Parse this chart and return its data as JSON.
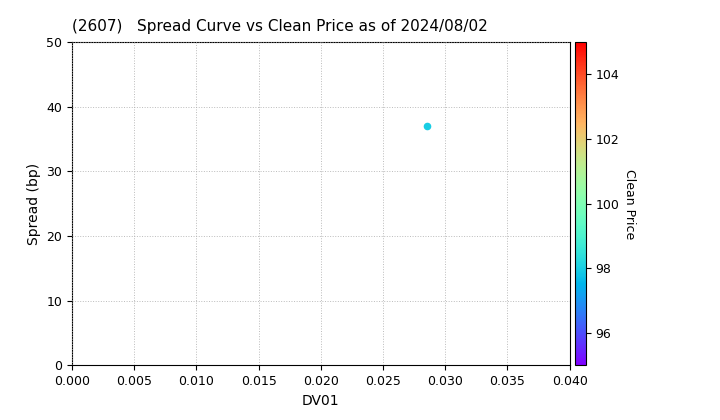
{
  "title": "(2607)   Spread Curve vs Clean Price as of 2024/08/02",
  "xlabel": "DV01",
  "ylabel": "Spread (bp)",
  "colorbar_label": "Clean Price",
  "xlim": [
    0.0,
    0.04
  ],
  "ylim": [
    0,
    50
  ],
  "xticks": [
    0.0,
    0.005,
    0.01,
    0.015,
    0.02,
    0.025,
    0.03,
    0.035,
    0.04
  ],
  "yticks": [
    0,
    10,
    20,
    30,
    40,
    50
  ],
  "colorbar_ticks": [
    96,
    98,
    100,
    102,
    104
  ],
  "colorbar_vmin": 95,
  "colorbar_vmax": 105,
  "scatter_x": [
    0.0285
  ],
  "scatter_y": [
    37.0
  ],
  "scatter_color": [
    98.0
  ],
  "scatter_size": 20,
  "colormap": "rainbow",
  "grid_color": "#aaaaaa",
  "grid_linestyle": ":",
  "background_color": "#ffffff",
  "title_fontsize": 11,
  "axis_label_fontsize": 10,
  "tick_fontsize": 9,
  "colorbar_fontsize": 9,
  "figsize": [
    7.2,
    4.2
  ],
  "dpi": 100
}
